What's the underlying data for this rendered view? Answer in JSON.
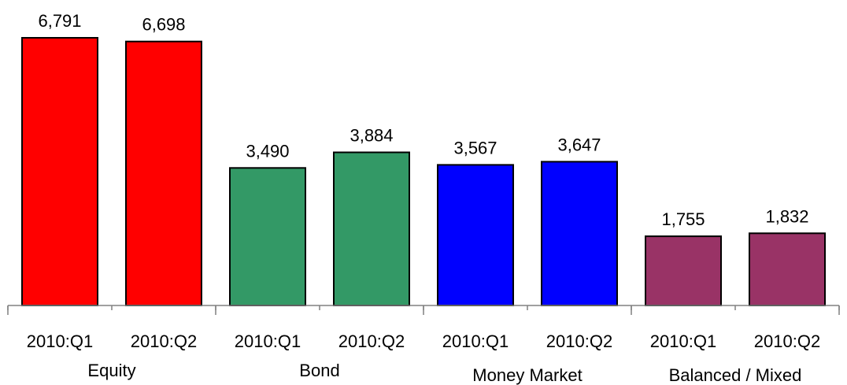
{
  "chart_data": {
    "type": "bar",
    "categories": [
      {
        "group": "Equity",
        "period": "2010:Q1",
        "value": 6791,
        "label": "6,791",
        "color": "#ff0000"
      },
      {
        "group": "Equity",
        "period": "2010:Q2",
        "value": 6698,
        "label": "6,698",
        "color": "#ff0000"
      },
      {
        "group": "Bond",
        "period": "2010:Q1",
        "value": 3490,
        "label": "3,490",
        "color": "#339966"
      },
      {
        "group": "Bond",
        "period": "2010:Q2",
        "value": 3884,
        "label": "3,884",
        "color": "#339966"
      },
      {
        "group": "Money Market",
        "period": "2010:Q1",
        "value": 3567,
        "label": "3,567",
        "color": "#0000ff"
      },
      {
        "group": "Money Market",
        "period": "2010:Q2",
        "value": 3647,
        "label": "3,647",
        "color": "#0000ff"
      },
      {
        "group": "Balanced / Mixed",
        "period": "2010:Q1",
        "value": 1755,
        "label": "1,755",
        "color": "#993366"
      },
      {
        "group": "Balanced / Mixed",
        "period": "2010:Q2",
        "value": 1832,
        "label": "1,832",
        "color": "#993366"
      }
    ],
    "groups": [
      "Equity",
      "Bond",
      "Money Market",
      "Balanced / Mixed"
    ],
    "ylim": [
      0,
      6791
    ],
    "grid": false,
    "legend": "none"
  }
}
